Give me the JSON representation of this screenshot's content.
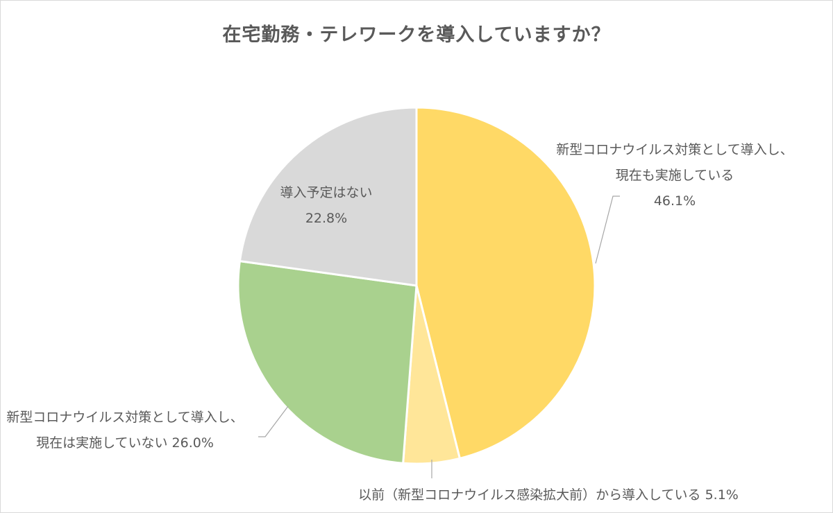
{
  "chart_data": {
    "type": "pie",
    "title": "在宅勤務・テレワークを導入していますか？",
    "slices": [
      {
        "label_lines": [
          "新型コロナウイルス対策として導入し、",
          "現在も実施している",
          "46.1%"
        ],
        "value": 46.1,
        "color": "#ffd966"
      },
      {
        "label_lines": [
          "以前（新型コロナウイルス感染拡大前）から導入している 5.1%"
        ],
        "value": 5.1,
        "color": "#ffe699"
      },
      {
        "label_lines": [
          "新型コロナウイルス対策として導入し、",
          "現在は実施していない 26.0%"
        ],
        "value": 26.0,
        "color": "#a9d18e"
      },
      {
        "label_lines": [
          "導入予定はない",
          "22.8%"
        ],
        "value": 22.8,
        "color": "#d9d9d9"
      }
    ],
    "start_angle": "12 o'clock",
    "direction": "clockwise",
    "legend": "none",
    "label_placement": [
      "outside-right",
      "outside-bottom",
      "outside-left",
      "inside"
    ]
  }
}
